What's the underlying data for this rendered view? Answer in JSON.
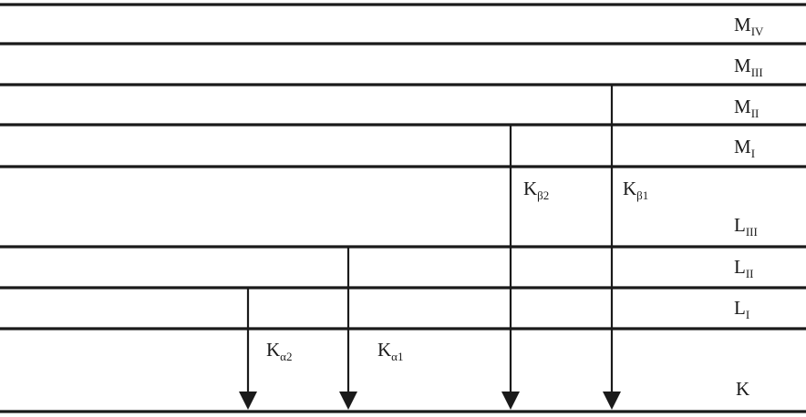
{
  "levels": {
    "M4": {
      "letter": "M",
      "sub": "IV"
    },
    "M3": {
      "letter": "M",
      "sub": "III"
    },
    "M2": {
      "letter": "M",
      "sub": "II"
    },
    "M1": {
      "letter": "M",
      "sub": "I"
    },
    "L3": {
      "letter": "L",
      "sub": "III"
    },
    "L2": {
      "letter": "L",
      "sub": "II"
    },
    "L1": {
      "letter": "L",
      "sub": "I"
    },
    "K": {
      "letter": "K",
      "sub": ""
    }
  },
  "transitions": {
    "ka2": {
      "letter": "K",
      "sub": "α2"
    },
    "ka1": {
      "letter": "K",
      "sub": "α1"
    },
    "kb2": {
      "letter": "K",
      "sub": "β2"
    },
    "kb1": {
      "letter": "K",
      "sub": "β1"
    }
  }
}
